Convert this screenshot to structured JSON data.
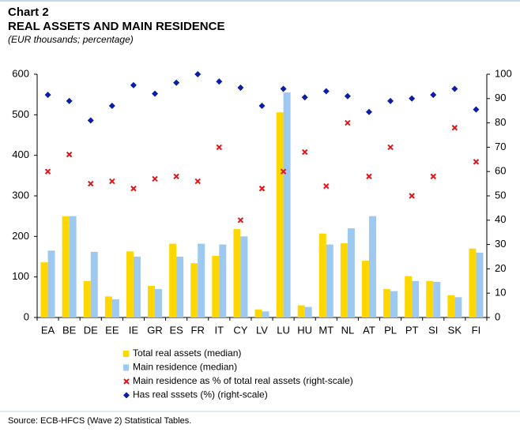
{
  "chart_data": {
    "type": "bar",
    "label": "Chart 2",
    "title": "REAL ASSETS AND MAIN RESIDENCE",
    "subtitle": "(EUR thousands; percentage)",
    "source": "Source: ECB-HFCS (Wave 2) Statistical Tables.",
    "categories": [
      "EA",
      "BE",
      "DE",
      "EE",
      "IE",
      "GR",
      "ES",
      "FR",
      "IT",
      "CY",
      "LV",
      "LU",
      "HU",
      "MT",
      "NL",
      "AT",
      "PL",
      "PT",
      "SI",
      "SK",
      "FI"
    ],
    "series": [
      {
        "name": "Total real assets (median)",
        "color": "#ffd700",
        "marker": "bar",
        "values": [
          136,
          250,
          90,
          52,
          163,
          78,
          182,
          134,
          152,
          218,
          20,
          506,
          30,
          207,
          183,
          140,
          70,
          102,
          90,
          55,
          170
        ]
      },
      {
        "name": "Main residence (median)",
        "color": "#9dc8f0",
        "marker": "bar",
        "values": [
          165,
          250,
          162,
          45,
          150,
          70,
          150,
          182,
          180,
          200,
          15,
          555,
          26,
          180,
          220,
          250,
          65,
          90,
          88,
          50,
          160
        ]
      },
      {
        "name": "Main residence as % of total real assets (right-scale)",
        "color": "#e0161b",
        "marker": "x",
        "axis": "y2",
        "values": [
          60,
          67,
          55,
          56,
          53,
          57,
          58,
          56,
          70,
          40,
          53,
          60,
          68,
          54,
          80,
          58,
          70,
          50,
          58,
          78,
          64
        ]
      },
      {
        "name": "Has real sssets (%) (right-scale)",
        "color": "#0a1ea6",
        "marker": "diamond",
        "axis": "y2",
        "values": [
          91.5,
          89,
          81,
          87,
          95.5,
          92,
          96.5,
          100,
          97,
          94.5,
          87,
          94,
          90.5,
          93,
          91,
          84.5,
          89,
          90,
          91.5,
          94,
          85.5
        ]
      }
    ],
    "ylim": [
      0,
      600
    ],
    "yticks": [
      0,
      100,
      200,
      300,
      400,
      500,
      600
    ],
    "y2lim": [
      0,
      100
    ],
    "y2ticks": [
      0,
      10,
      20,
      30,
      40,
      50,
      60,
      70,
      80,
      90,
      100
    ]
  }
}
